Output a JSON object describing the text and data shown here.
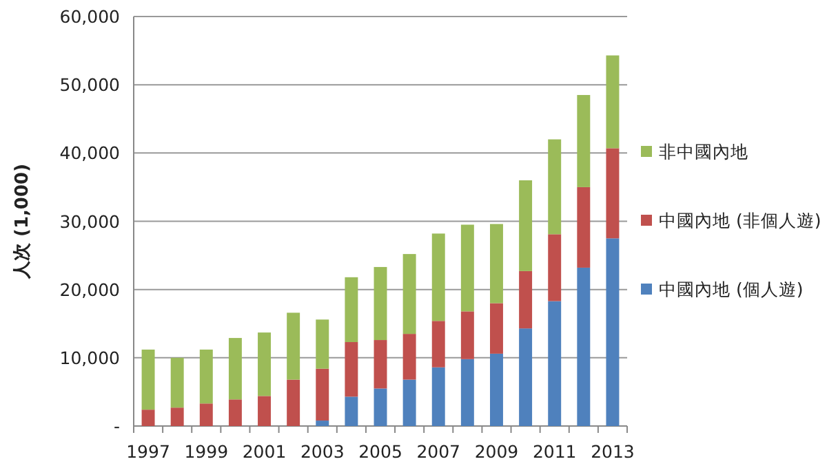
{
  "chart_data": {
    "type": "bar",
    "stacked": true,
    "ylabel": "人次 (1,000)",
    "categories": [
      "1997",
      null,
      "1999",
      null,
      "2001",
      null,
      "2003",
      null,
      "2005",
      null,
      "2007",
      null,
      "2009",
      null,
      "2011",
      null,
      "2013"
    ],
    "series": [
      {
        "name": "中國內地 (個人遊)",
        "color": "#4f81bd",
        "values": [
          0,
          0,
          0,
          0,
          0,
          0,
          800,
          4300,
          5500,
          6800,
          8600,
          9800,
          10600,
          14300,
          18300,
          23200,
          27500
        ]
      },
      {
        "name": "中國內地 (非個人遊)",
        "color": "#c0504d",
        "values": [
          2400,
          2700,
          3300,
          3900,
          4400,
          6800,
          7600,
          8000,
          7100,
          6700,
          6800,
          7000,
          7400,
          8400,
          9800,
          11800,
          13200
        ]
      },
      {
        "name": "非中國內地",
        "color": "#9bbb59",
        "values": [
          8800,
          7300,
          7900,
          9000,
          9300,
          9800,
          7200,
          9500,
          10700,
          11700,
          12800,
          12700,
          11600,
          13300,
          13900,
          13500,
          13600
        ]
      }
    ],
    "ylim": [
      0,
      60000
    ],
    "yticks": [
      {
        "value": 0,
        "label": "-"
      },
      {
        "value": 10000,
        "label": "10,000"
      },
      {
        "value": 20000,
        "label": "20,000"
      },
      {
        "value": 30000,
        "label": "30,000"
      },
      {
        "value": 40000,
        "label": "40,000"
      },
      {
        "value": 50000,
        "label": "50,000"
      },
      {
        "value": 60000,
        "label": "60,000"
      }
    ],
    "grid": "y",
    "legend": "right"
  }
}
